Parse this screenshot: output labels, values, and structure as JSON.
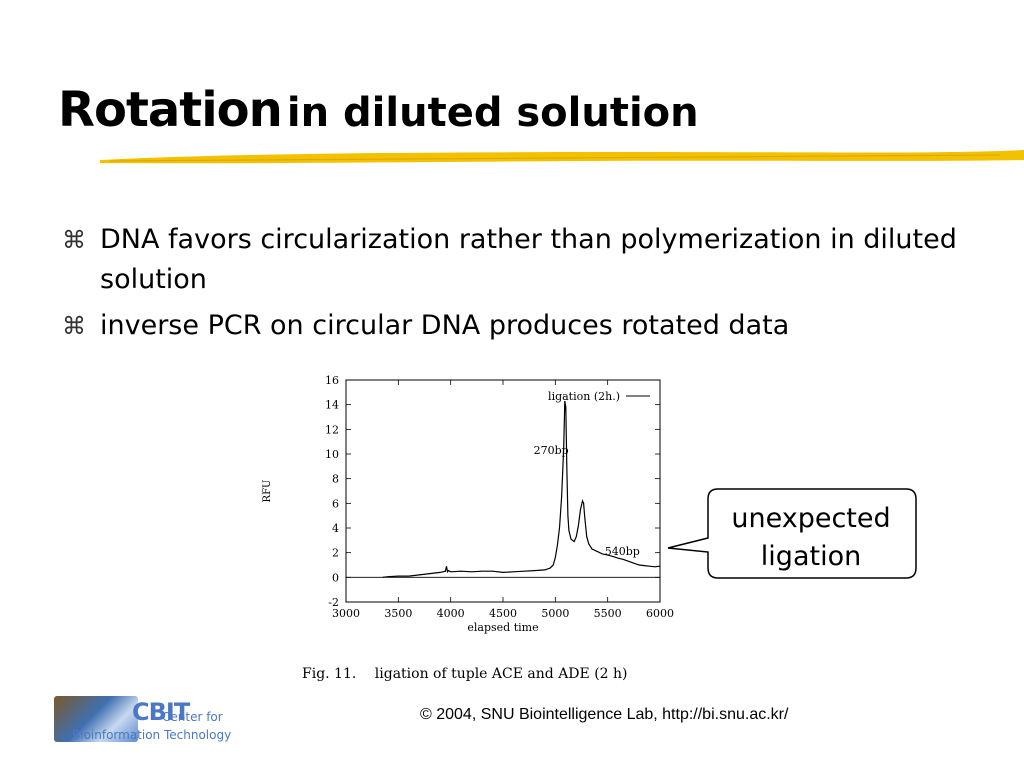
{
  "slide": {
    "title_bold": "Rotation",
    "title_rest": "in diluted solution",
    "bullet_icon": "command-key-icon",
    "bullets": [
      "DNA favors circularization rather than polymerization in diluted solution",
      "inverse PCR on circular DNA produces rotated data"
    ],
    "callout": "unexpected ligation",
    "caption_label": "Fig. 11.",
    "caption_text": "ligation of tuple ACE and ADE (2 h)",
    "footer": "© 2004, SNU Biointelligence Lab, http://bi.snu.ac.kr/",
    "logo": {
      "name": "CBIT",
      "line1": "Center for",
      "line2": "Bioinformation Technology"
    },
    "colors": {
      "underline": "#f2c200",
      "logo_blue": "#4a78c4"
    }
  },
  "chart_data": {
    "type": "line",
    "xlabel": "elapsed time",
    "ylabel": "RFU",
    "xlim": [
      3000,
      6000
    ],
    "ylim": [
      -2,
      16
    ],
    "xticks": [
      3000,
      3500,
      4000,
      4500,
      5000,
      5500,
      6000
    ],
    "yticks": [
      -2,
      0,
      2,
      4,
      6,
      8,
      10,
      12,
      14,
      16
    ],
    "legend": "ligation (2h.)",
    "legend_position": "top-right",
    "grid": false,
    "annotations": [
      {
        "text": "270bp",
        "x": 4960,
        "y": 10.0
      },
      {
        "text": "540bp",
        "x": 5640,
        "y": 1.8
      }
    ],
    "series": [
      {
        "name": "ligation (2h.)",
        "x": [
          3350,
          3400,
          3500,
          3600,
          3700,
          3800,
          3850,
          3900,
          3950,
          3960,
          3970,
          3980,
          4000,
          4100,
          4200,
          4300,
          4400,
          4500,
          4600,
          4700,
          4800,
          4900,
          4950,
          4980,
          5000,
          5020,
          5040,
          5060,
          5080,
          5090,
          5100,
          5110,
          5120,
          5130,
          5150,
          5180,
          5200,
          5220,
          5240,
          5260,
          5270,
          5280,
          5300,
          5320,
          5350,
          5400,
          5450,
          5500,
          5550,
          5600,
          5650,
          5700,
          5750,
          5800,
          5850,
          5900,
          5950,
          6000
        ],
        "y": [
          0.0,
          0.05,
          0.1,
          0.1,
          0.2,
          0.3,
          0.35,
          0.4,
          0.5,
          0.9,
          0.45,
          0.55,
          0.45,
          0.5,
          0.45,
          0.5,
          0.5,
          0.4,
          0.45,
          0.5,
          0.55,
          0.6,
          0.75,
          1.0,
          1.6,
          2.6,
          4.0,
          6.5,
          10.5,
          14.3,
          13.8,
          9.0,
          5.0,
          3.8,
          3.1,
          2.9,
          3.3,
          4.2,
          5.5,
          6.2,
          6.0,
          5.0,
          3.3,
          2.7,
          2.3,
          2.1,
          1.9,
          1.8,
          1.7,
          1.55,
          1.45,
          1.3,
          1.15,
          1.0,
          0.95,
          0.9,
          0.85,
          0.9
        ]
      }
    ]
  }
}
